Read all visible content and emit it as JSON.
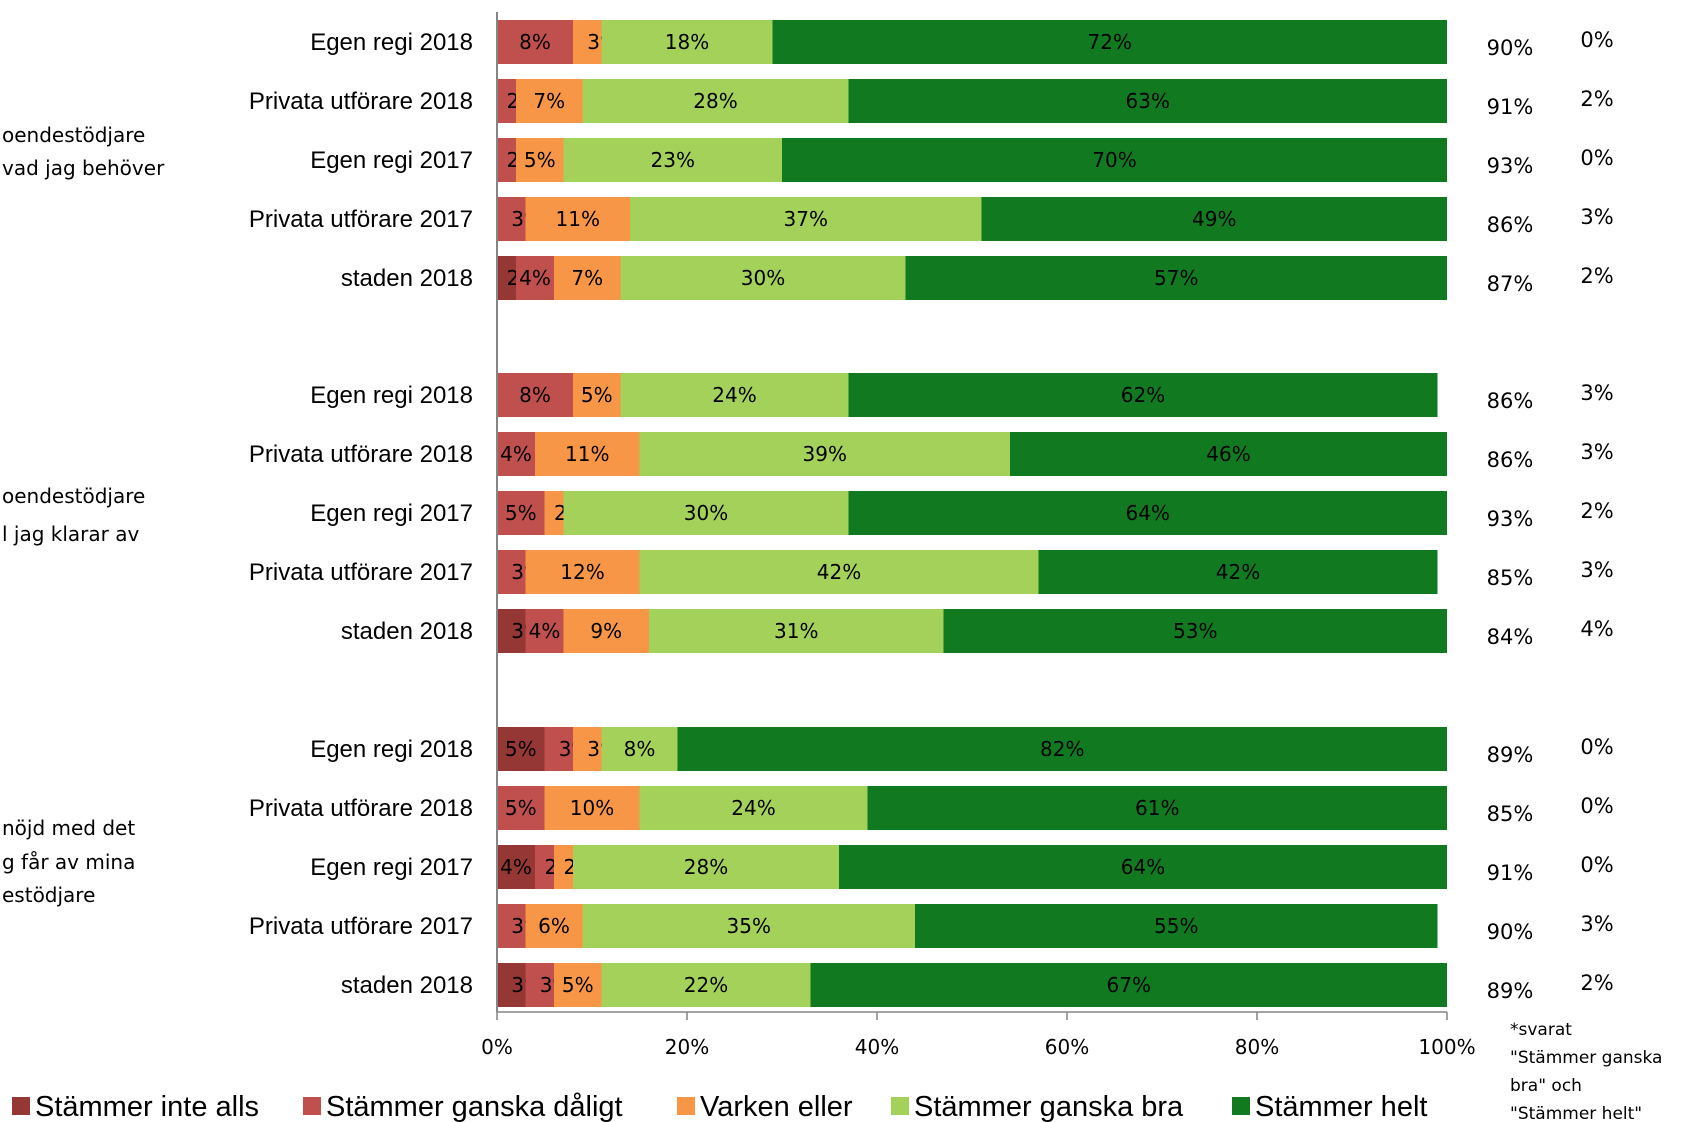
{
  "chart_data": {
    "type": "bar",
    "orientation": "horizontal-stacked-percent",
    "xlim": [
      0,
      100
    ],
    "x_ticks": [
      "0%",
      "20%",
      "40%",
      "60%",
      "80%",
      "100%"
    ],
    "colors": {
      "Stämmer inte alls": "#953735",
      "Stämmer ganska dåligt": "#c0504d",
      "Varken eller": "#f79646",
      "Stämmer ganska bra": "#a3d15a",
      "Stämmer helt": "#117a21"
    },
    "legend": {
      "position": "bottom",
      "entries": [
        "Stämmer inte alls",
        "Stämmer ganska dåligt",
        "Varken eller",
        "Stämmer ganska bra",
        "Stämmer helt"
      ]
    },
    "note": [
      "*svarat",
      "\"Stämmer ganska",
      "bra\" och",
      "\"Stämmer helt\""
    ],
    "groups": [
      {
        "label_lines": [
          "oendestödjare",
          " vad jag behöver"
        ],
        "rows": [
          {
            "category": "Egen regi 2018",
            "values": [
              8,
              3,
              18,
              72
            ],
            "labels": [
              "8%",
              "3%",
              "18%",
              "72%"
            ],
            "col1": "90%",
            "col2": "0%"
          },
          {
            "category": "Privata utförare 2018",
            "values": [
              2,
              7,
              28,
              63
            ],
            "labels": [
              "2%",
              "7%",
              "28%",
              "63%"
            ],
            "col1": "91%",
            "col2": "2%"
          },
          {
            "category": "Egen regi 2017",
            "values": [
              2,
              5,
              23,
              70
            ],
            "labels": [
              "2%",
              "5%",
              "23%",
              "70%"
            ],
            "col1": "93%",
            "col2": "0%"
          },
          {
            "category": "Privata utförare 2017",
            "values": [
              3,
              11,
              37,
              49
            ],
            "labels": [
              "3%",
              "11%",
              "37%",
              "49%"
            ],
            "col1": "86%",
            "col2": "3%"
          },
          {
            "category": "staden 2018",
            "values": [
              2,
              4,
              7,
              30,
              57
            ],
            "labels": [
              "2%",
              "4%",
              "7%",
              "30%",
              "57%"
            ],
            "col1": "87%",
            "col2": "2%"
          }
        ]
      },
      {
        "label_lines": [
          "oendestödjare",
          "l jag klarar av"
        ],
        "rows": [
          {
            "category": "Egen regi 2018",
            "values": [
              8,
              5,
              24,
              62
            ],
            "labels": [
              "8%",
              "5%",
              "24%",
              "62%"
            ],
            "col1": "86%",
            "col2": "3%"
          },
          {
            "category": "Privata utförare 2018",
            "values": [
              4,
              11,
              39,
              46
            ],
            "labels": [
              "4%",
              "11%",
              "39%",
              "46%"
            ],
            "col1": "86%",
            "col2": "3%"
          },
          {
            "category": "Egen regi 2017",
            "values": [
              5,
              2,
              30,
              64
            ],
            "labels": [
              "5%",
              "2%",
              "30%",
              "64%"
            ],
            "col1": "93%",
            "col2": "2%"
          },
          {
            "category": "Privata utförare 2017",
            "values": [
              3,
              12,
              42,
              42
            ],
            "labels": [
              "3%",
              "12%",
              "42%",
              "42%"
            ],
            "col1": "85%",
            "col2": "3%"
          },
          {
            "category": "staden 2018",
            "values": [
              3,
              4,
              9,
              31,
              53
            ],
            "labels": [
              "3%",
              "4%",
              "9%",
              "31%",
              "53%"
            ],
            "col1": "84%",
            "col2": "4%"
          }
        ]
      },
      {
        "label_lines": [
          "nöjd med det",
          "g får av mina",
          "estödjare"
        ],
        "rows": [
          {
            "category": "Egen regi 2018",
            "values": [
              5,
              3,
              3,
              8,
              82
            ],
            "labels": [
              "5%",
              "3%",
              "3%",
              "8%",
              "82%"
            ],
            "col1": "89%",
            "col2": "0%"
          },
          {
            "category": "Privata utförare 2018",
            "values": [
              5,
              10,
              24,
              61
            ],
            "labels": [
              "5%",
              "10%",
              "24%",
              "61%"
            ],
            "col1": "85%",
            "col2": "0%"
          },
          {
            "category": "Egen regi 2017",
            "values": [
              4,
              2,
              2,
              28,
              64
            ],
            "labels": [
              "4%",
              "2%",
              "2%",
              "28%",
              "64%"
            ],
            "col1": "91%",
            "col2": "0%"
          },
          {
            "category": "Privata utförare 2017",
            "values": [
              3,
              6,
              35,
              55
            ],
            "labels": [
              "3%",
              "6%",
              "35%",
              "55%"
            ],
            "col1": "90%",
            "col2": "3%"
          },
          {
            "category": "staden 2018",
            "values": [
              3,
              3,
              5,
              22,
              67
            ],
            "labels": [
              "3%",
              "3%",
              "5%",
              "22%",
              "67%"
            ],
            "col1": "89%",
            "col2": "2%"
          }
        ]
      }
    ]
  }
}
